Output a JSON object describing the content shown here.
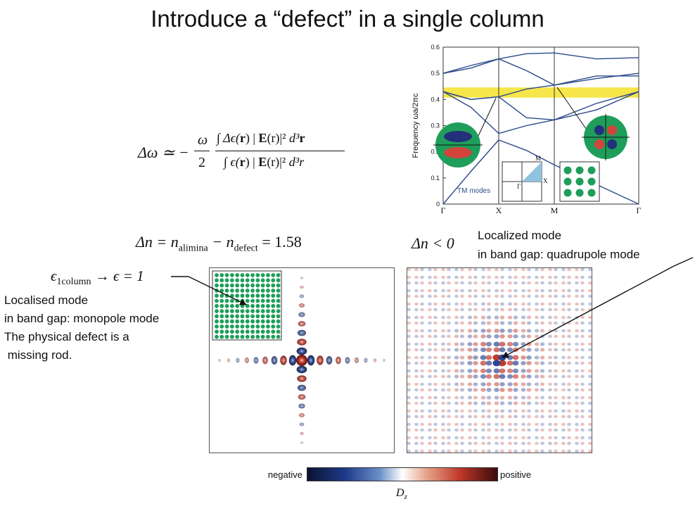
{
  "title": "Introduce a “defect” in a single column",
  "formula": {
    "lhs": "Δω ≃ −",
    "omega": "ω",
    "two": "2",
    "integral": "∫",
    "numerator_a": "Δϵ(",
    "numerator_r": "r",
    "numerator_b": ") |",
    "E": "E",
    "E_arg": "(r)",
    "bar_sq": "|²",
    "d3": "d³",
    "r_bold": "r",
    "denominator_a": "ϵ(",
    "denominator_b": ") |",
    "d3r": "d³r"
  },
  "delta_n_equation": {
    "lhs": "Δn = n",
    "sub1": "alimina",
    "minus": " − n",
    "sub2": "defect",
    "rhs": " = 1.58"
  },
  "delta_n_negative": "Δn < 0",
  "eps_label": {
    "a": "ϵ",
    "sub": "1column",
    "b": " → ϵ = 1"
  },
  "left_notes": [
    "Localised mode",
    "in band gap: monopole mode",
    "The physical defect is a",
    " missing rod."
  ],
  "right_notes": [
    "Localized mode",
    "in band gap: quadrupole mode"
  ],
  "colorbar": {
    "negative_label": "negative",
    "positive_label": "positive",
    "quantity": "D",
    "quantity_sub": "z"
  },
  "band_diagram": {
    "y_axis_label": "Frequency  ωa/2πc",
    "y_ticks": [
      "0",
      "0.1",
      "0.2",
      "0.3",
      "0.4",
      "0.5",
      "0.6"
    ],
    "x_ticks": [
      "Γ",
      "X",
      "M",
      "Γ"
    ],
    "gap_range": [
      0.407,
      0.446
    ],
    "mode_label": "TM modes",
    "bz_labels": [
      "M",
      "X",
      "Γ"
    ],
    "colors": {
      "band": "#2a4a8a",
      "gap": "#f6e64a",
      "disk": "#1e9e5a",
      "lobe_red": "#d2453c",
      "lobe_blue": "#23307a"
    }
  }
}
